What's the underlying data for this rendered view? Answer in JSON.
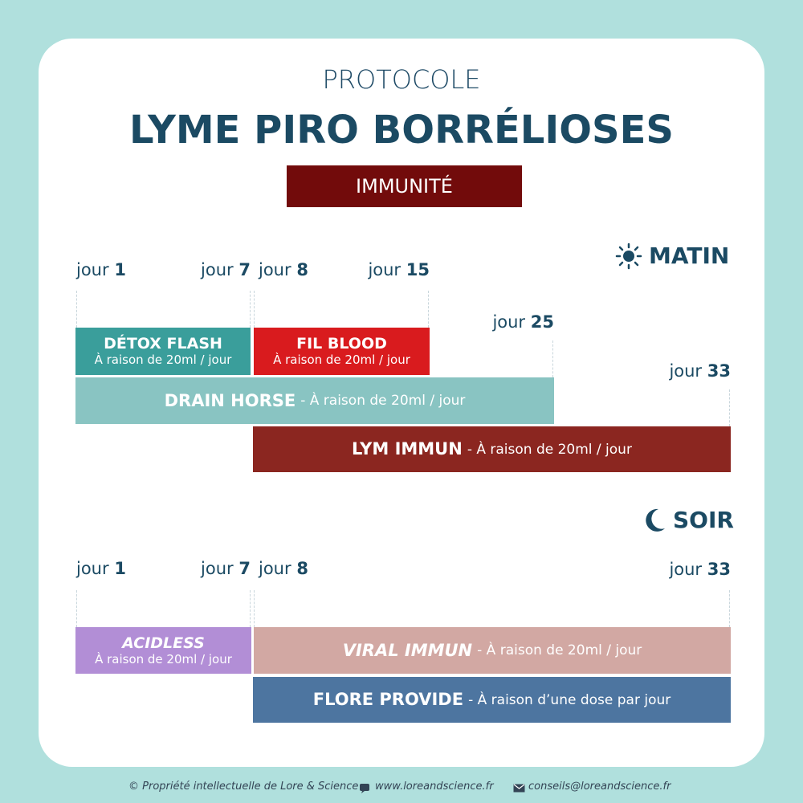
{
  "header": {
    "pretitle": "PROTOCOLE",
    "title": "LYME PIRO BORRÉLIOSES",
    "badge": "IMMUNITÉ"
  },
  "sections": [
    {
      "title": "MATIN",
      "days": [
        {
          "word": "jour",
          "num": "1"
        },
        {
          "word": "jour",
          "num": "7"
        },
        {
          "word": "jour",
          "num": "8"
        },
        {
          "word": "jour",
          "num": "15"
        },
        {
          "word": "jour",
          "num": "25"
        },
        {
          "word": "jour",
          "num": "33"
        }
      ],
      "bars": [
        {
          "name": "DÉTOX FLASH",
          "dose": "À raison de 20ml / jour"
        },
        {
          "name": "FIL BLOOD",
          "dose": "À raison de 20ml / jour"
        },
        {
          "name": "DRAIN HORSE",
          "dose": "- À raison de 20ml / jour"
        },
        {
          "name": "LYM IMMUN",
          "dose": "- À raison de 20ml / jour"
        }
      ]
    },
    {
      "title": "SOIR",
      "days": [
        {
          "word": "jour",
          "num": "1"
        },
        {
          "word": "jour",
          "num": "7"
        },
        {
          "word": "jour",
          "num": "8"
        },
        {
          "word": "jour",
          "num": "33"
        }
      ],
      "bars": [
        {
          "name": "ACIDLESS",
          "dose": "À raison de 20ml / jour"
        },
        {
          "name": "VIRAL IMMUN",
          "dose": "- À raison de 20ml / jour"
        },
        {
          "name": "FLORE PROVIDE",
          "dose": "- À raison d’une dose par jour"
        }
      ]
    }
  ],
  "footer": {
    "copyright": "© Propriété intellectuelle de Lore & Science",
    "website": "www.loreandscience.fr",
    "email": "conseils@loreandscience.fr"
  }
}
